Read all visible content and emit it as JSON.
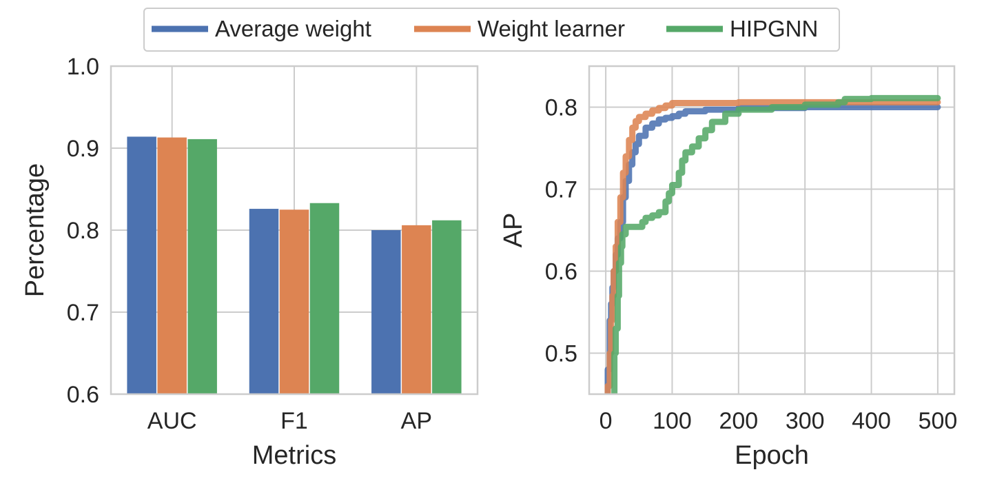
{
  "legend": {
    "items": [
      {
        "label": "Average weight",
        "color": "#4c72b0"
      },
      {
        "label": "Weight learner",
        "color": "#dd8452"
      },
      {
        "label": "HIPGNN",
        "color": "#55a868"
      }
    ]
  },
  "chart_data": [
    {
      "type": "bar",
      "xlabel": "Metrics",
      "ylabel": "Percentage",
      "ylim": [
        0.6,
        1.0
      ],
      "yticks": [
        "0.6",
        "0.7",
        "0.8",
        "0.9",
        "1.0"
      ],
      "categories": [
        "AUC",
        "F1",
        "AP"
      ],
      "grid": true,
      "series": [
        {
          "name": "Average weight",
          "color": "#4c72b0",
          "values": [
            0.914,
            0.826,
            0.8
          ]
        },
        {
          "name": "Weight learner",
          "color": "#dd8452",
          "values": [
            0.913,
            0.825,
            0.806
          ]
        },
        {
          "name": "HIPGNN",
          "color": "#55a868",
          "values": [
            0.911,
            0.833,
            0.812
          ]
        }
      ]
    },
    {
      "type": "line",
      "xlabel": "Epoch",
      "ylabel": "AP",
      "xlim": [
        -25,
        525
      ],
      "ylim": [
        0.45,
        0.85
      ],
      "xticks": [
        "0",
        "100",
        "200",
        "300",
        "400",
        "500"
      ],
      "yticks": [
        "0.5",
        "0.6",
        "0.7",
        "0.8"
      ],
      "grid": true,
      "series": [
        {
          "name": "Average weight",
          "color": "#4c72b0",
          "x": [
            0,
            3,
            6,
            8,
            10,
            12,
            15,
            18,
            22,
            26,
            30,
            35,
            40,
            45,
            50,
            60,
            70,
            80,
            90,
            100,
            110,
            120,
            150,
            200,
            300,
            400,
            500
          ],
          "y": [
            0.4,
            0.48,
            0.54,
            0.56,
            0.58,
            0.6,
            0.62,
            0.64,
            0.66,
            0.69,
            0.71,
            0.73,
            0.745,
            0.755,
            0.765,
            0.775,
            0.78,
            0.785,
            0.787,
            0.789,
            0.792,
            0.795,
            0.797,
            0.799,
            0.8,
            0.8,
            0.8
          ]
        },
        {
          "name": "Weight learner",
          "color": "#dd8452",
          "x": [
            0,
            3,
            6,
            8,
            10,
            12,
            15,
            18,
            22,
            26,
            30,
            35,
            40,
            45,
            50,
            60,
            70,
            80,
            90,
            100,
            150,
            200,
            300,
            400,
            500
          ],
          "y": [
            0.4,
            0.46,
            0.5,
            0.54,
            0.57,
            0.6,
            0.63,
            0.66,
            0.69,
            0.72,
            0.74,
            0.76,
            0.775,
            0.783,
            0.788,
            0.792,
            0.796,
            0.799,
            0.802,
            0.805,
            0.805,
            0.806,
            0.806,
            0.806,
            0.806
          ]
        },
        {
          "name": "HIPGNN",
          "color": "#55a868",
          "x": [
            0,
            5,
            10,
            13,
            15,
            18,
            20,
            23,
            25,
            30,
            40,
            50,
            55,
            60,
            70,
            80,
            90,
            95,
            100,
            110,
            115,
            120,
            130,
            140,
            150,
            160,
            180,
            200,
            250,
            300,
            350,
            360,
            400,
            500
          ],
          "y": [
            0.38,
            0.4,
            0.44,
            0.5,
            0.53,
            0.57,
            0.61,
            0.63,
            0.645,
            0.654,
            0.654,
            0.654,
            0.66,
            0.665,
            0.668,
            0.672,
            0.685,
            0.695,
            0.705,
            0.72,
            0.735,
            0.745,
            0.752,
            0.762,
            0.772,
            0.782,
            0.792,
            0.797,
            0.8,
            0.803,
            0.806,
            0.81,
            0.811,
            0.811
          ]
        }
      ]
    }
  ]
}
